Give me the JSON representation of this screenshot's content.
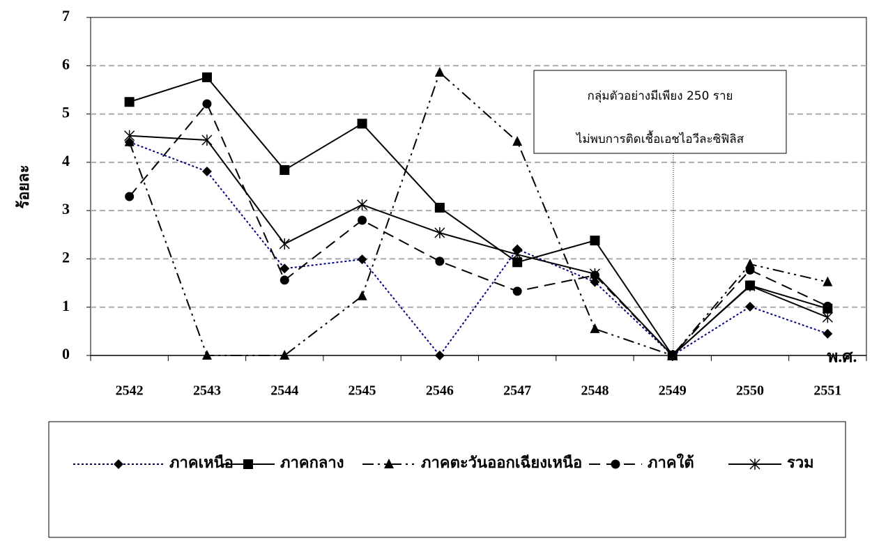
{
  "chart_data": {
    "type": "line",
    "y_label": "ร้อยละ",
    "x_label": "พ.ศ.",
    "annotation": [
      "กลุ่มตัวอย่างมีเพียง 250 ราย",
      "ไม่พบการติดเชื้อเอชไอวีละซิฟิลิส"
    ],
    "categories": [
      "2542",
      "2543",
      "2544",
      "2545",
      "2546",
      "2547",
      "2548",
      "2549",
      "2550",
      "2551"
    ],
    "ylim": [
      0,
      7
    ],
    "yticks": [
      0,
      1,
      2,
      3,
      4,
      5,
      6,
      7
    ],
    "grid": true,
    "series": [
      {
        "name": "ภาคเหนือ",
        "color": "#000080",
        "dash": "3,3",
        "marker": "diamond",
        "values": [
          4.42,
          3.81,
          1.8,
          1.99,
          0,
          2.2,
          1.52,
          0,
          1.01,
          0.45
        ]
      },
      {
        "name": "ภาคกลาง",
        "color": "#000000",
        "dash": "none",
        "marker": "square",
        "values": [
          5.25,
          5.76,
          3.84,
          4.8,
          3.06,
          1.93,
          2.38,
          0,
          1.45,
          0.97
        ]
      },
      {
        "name": "ภาคตะวันออกเฉียงเหนือ",
        "color": "#000000",
        "dash": "16,6,3,6,3,6",
        "marker": "triangle",
        "values": [
          4.42,
          0,
          0,
          1.23,
          5.86,
          4.43,
          0.55,
          0,
          1.89,
          1.52
        ]
      },
      {
        "name": "ภาคใต้",
        "color": "#000000",
        "dash": "16,9",
        "marker": "circle",
        "values": [
          3.29,
          5.21,
          1.56,
          2.8,
          1.95,
          1.33,
          1.66,
          0,
          1.77,
          1.02
        ]
      },
      {
        "name": "รวม",
        "color": "#000000",
        "dash": "none",
        "marker": "star",
        "values": [
          4.55,
          4.46,
          2.31,
          3.12,
          2.54,
          2.09,
          1.69,
          0,
          1.44,
          0.79
        ]
      }
    ]
  }
}
